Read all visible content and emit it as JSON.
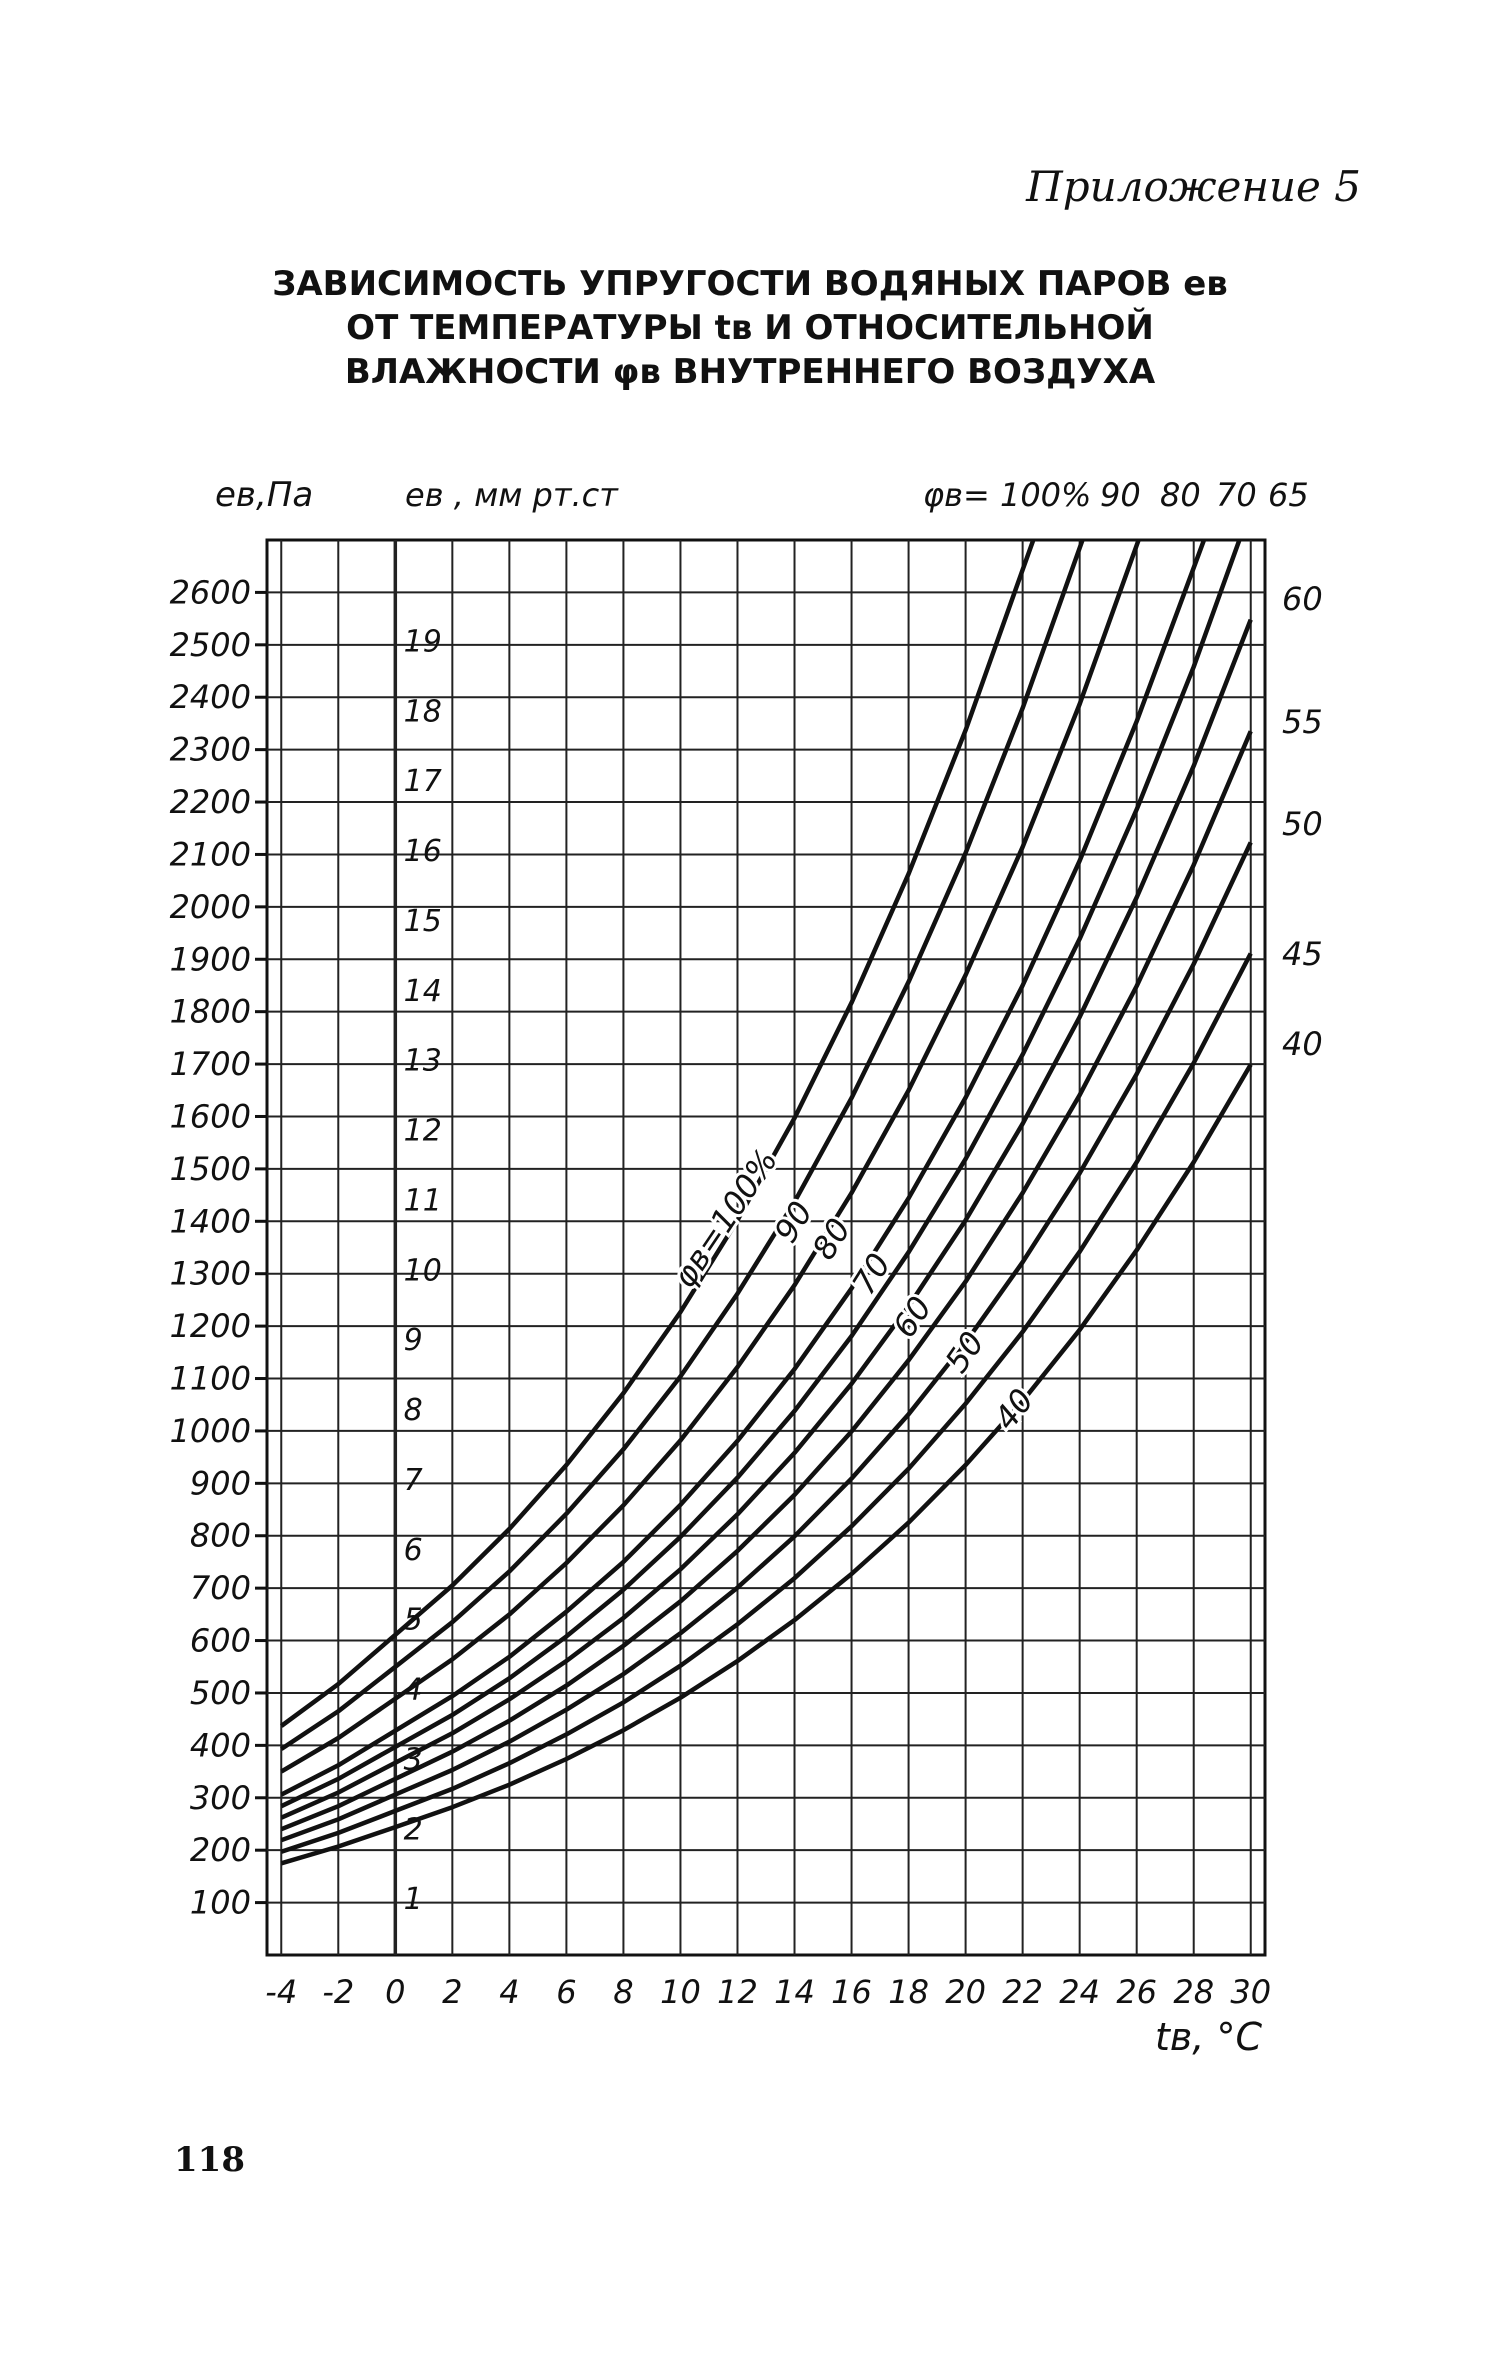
{
  "header": {
    "appendix": "Приложение 5",
    "title_lines": [
      "ЗАВИСИМОСТЬ УПРУГОСТИ ВОДЯНЫХ ПАРОВ eв",
      "ОТ ТЕМПЕРАТУРЫ tв И ОТНОСИТЕЛЬНОЙ",
      "ВЛАЖНОСТИ φв ВНУТРЕННЕГО ВОЗДУХА"
    ]
  },
  "footer": {
    "page_number": "118"
  },
  "chart_data": {
    "type": "line",
    "y_axis_pa": {
      "label": "eв,Па",
      "range": [
        0,
        2700
      ],
      "ticks": [
        100,
        200,
        300,
        400,
        500,
        600,
        700,
        800,
        900,
        1000,
        1100,
        1200,
        1300,
        1400,
        1500,
        1600,
        1700,
        1800,
        1900,
        2000,
        2100,
        2200,
        2300,
        2400,
        2500,
        2600
      ]
    },
    "y_axis_mmhg": {
      "label": "eв , мм рт.ст",
      "ticks": [
        1,
        2,
        3,
        4,
        5,
        6,
        7,
        8,
        9,
        10,
        11,
        12,
        13,
        14,
        15,
        16,
        17,
        18,
        19
      ]
    },
    "x_axis": {
      "label": "tв, °C",
      "range": [
        -4.5,
        30.5
      ],
      "ticks": [
        -4,
        -2,
        0,
        2,
        4,
        6,
        8,
        10,
        12,
        14,
        16,
        18,
        20,
        22,
        24,
        26,
        28,
        30
      ]
    },
    "top_legend": {
      "prefix": "φв= 100%",
      "labels": [
        "90",
        "80",
        "70",
        "65"
      ]
    },
    "right_labels": [
      "60",
      "55",
      "50",
      "45",
      "40"
    ],
    "inline_labels": [
      "φв=100%",
      "90",
      "80",
      "70",
      "60",
      "50",
      "40"
    ],
    "x": [
      -4,
      -2,
      0,
      2,
      4,
      6,
      8,
      10,
      12,
      14,
      16,
      18,
      20,
      22,
      24,
      26,
      28,
      30
    ],
    "series": [
      {
        "name": "100",
        "values": [
          437,
          517,
          611,
          705,
          813,
          935,
          1072,
          1227,
          1402,
          1597,
          1817,
          2063,
          2337,
          2643,
          null,
          null,
          null,
          null
        ]
      },
      {
        "name": "90",
        "values": [
          393,
          465,
          550,
          635,
          732,
          842,
          965,
          1104,
          1262,
          1437,
          1635,
          1857,
          2103,
          2379,
          2685,
          null,
          null,
          null
        ]
      },
      {
        "name": "80",
        "values": [
          350,
          414,
          489,
          564,
          650,
          748,
          858,
          982,
          1122,
          1278,
          1454,
          1650,
          1870,
          2114,
          2387,
          2690,
          null,
          null
        ]
      },
      {
        "name": "70",
        "values": [
          306,
          362,
          428,
          494,
          569,
          655,
          750,
          859,
          981,
          1118,
          1272,
          1444,
          1636,
          1850,
          2088,
          2354,
          2647,
          null
        ]
      },
      {
        "name": "65",
        "values": [
          284,
          336,
          397,
          458,
          528,
          608,
          697,
          798,
          911,
          1038,
          1181,
          1341,
          1519,
          1718,
          1939,
          2186,
          2458,
          2760
        ]
      },
      {
        "name": "60",
        "values": [
          262,
          310,
          367,
          423,
          488,
          561,
          643,
          736,
          841,
          958,
          1090,
          1238,
          1402,
          1586,
          1790,
          2018,
          2269,
          2548
        ]
      },
      {
        "name": "55",
        "values": [
          240,
          284,
          336,
          388,
          447,
          514,
          590,
          675,
          771,
          878,
          999,
          1135,
          1285,
          1454,
          1641,
          1849,
          2080,
          2335
        ]
      },
      {
        "name": "50",
        "values": [
          219,
          259,
          306,
          353,
          407,
          468,
          536,
          614,
          701,
          799,
          909,
          1032,
          1169,
          1322,
          1492,
          1681,
          1891,
          2123
        ]
      },
      {
        "name": "45",
        "values": [
          197,
          233,
          275,
          317,
          366,
          421,
          482,
          552,
          631,
          719,
          818,
          928,
          1052,
          1189,
          1342,
          1513,
          1702,
          1911
        ]
      },
      {
        "name": "40",
        "values": [
          175,
          207,
          244,
          282,
          325,
          374,
          429,
          491,
          561,
          639,
          727,
          825,
          935,
          1057,
          1193,
          1345,
          1513,
          1699
        ]
      }
    ],
    "grid": true
  }
}
